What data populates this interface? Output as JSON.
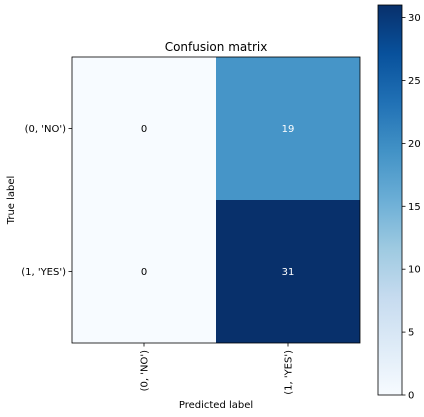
{
  "chart_data": {
    "type": "heatmap",
    "title": "Confusion matrix",
    "xlabel": "Predicted label",
    "ylabel": "True label",
    "x_categories": [
      "(0, 'NO')",
      "(1, 'YES')"
    ],
    "y_categories": [
      "(0, 'NO')",
      "(1, 'YES')"
    ],
    "values": [
      [
        0,
        19
      ],
      [
        0,
        31
      ]
    ],
    "colormap": "Blues",
    "colorbar": {
      "min": 0,
      "max": 31,
      "ticks": [
        0,
        5,
        10,
        15,
        20,
        25,
        30
      ],
      "tick_labels": [
        "0",
        "5",
        "10",
        "15",
        "20",
        "25",
        "30"
      ],
      "placement": "right"
    },
    "grid": false
  }
}
